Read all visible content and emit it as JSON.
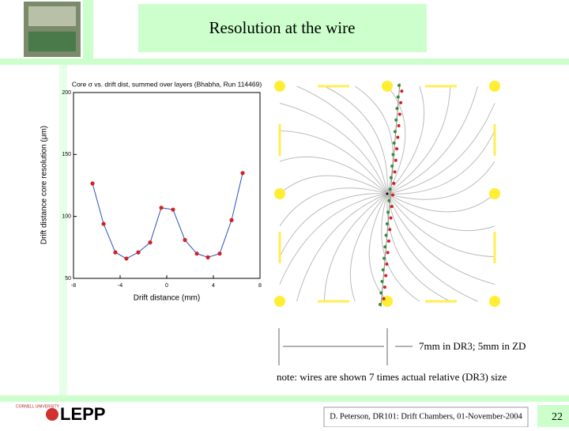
{
  "header": {
    "title": "Resolution at the wire"
  },
  "chart_data": {
    "type": "line",
    "title": "Core σ vs. drift dist, summed over layers (Bhabha, Run 114469)",
    "x_label": "Drift distance (mm)",
    "y_label": "Drift distance core resolution (μm)",
    "x": [
      -6.37,
      -5.42,
      -4.41,
      -3.46,
      -2.44,
      -1.42,
      -0.47,
      0.54,
      1.56,
      2.58,
      3.53,
      4.54,
      5.56,
      6.51
    ],
    "series": [
      {
        "name": "core resolution",
        "color": "#2f4fbf",
        "values": [
          126.6,
          94,
          71,
          66,
          71,
          79,
          107,
          105.5,
          81,
          70,
          67,
          70,
          97,
          135
        ]
      }
    ],
    "marker_color": "#d42020",
    "xlim": [
      -8,
      8
    ],
    "xticks": [
      -8,
      -4,
      0,
      4,
      8
    ],
    "ylim": [
      50,
      200
    ],
    "yticks": [
      50,
      100,
      150,
      200
    ]
  },
  "diagram": {
    "scale_label": "7mm in DR3;   5mm in ZD",
    "note": "note: wires are shown 7 times actual relative (DR3) size"
  },
  "footer": {
    "logo": "LEPP",
    "university": "CORNELL UNIVERSITY",
    "credit": "D. Peterson, DR101: Drift Chambers, 01-November-2004",
    "page": "22"
  }
}
